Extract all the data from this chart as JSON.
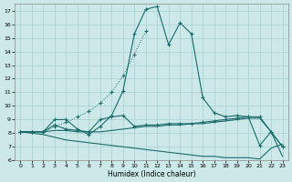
{
  "xlabel": "Humidex (Indice chaleur)",
  "xlim": [
    -0.5,
    23.5
  ],
  "ylim": [
    6,
    17.5
  ],
  "yticks": [
    6,
    7,
    8,
    9,
    10,
    11,
    12,
    13,
    14,
    15,
    16,
    17
  ],
  "xticks": [
    0,
    1,
    2,
    3,
    4,
    5,
    6,
    7,
    8,
    9,
    10,
    11,
    12,
    13,
    14,
    15,
    16,
    17,
    18,
    19,
    20,
    21,
    22,
    23
  ],
  "bg_color": "#cce8e8",
  "line_color": "#1a6b6b",
  "grid_color": "#a8d0d0",
  "curve_x": [
    0,
    1,
    2,
    3,
    4,
    5,
    6,
    7,
    8,
    9,
    10,
    11,
    12,
    13,
    14,
    15,
    16,
    17,
    18,
    19,
    20,
    21,
    22,
    23
  ],
  "curve_y": [
    8.1,
    8.1,
    8.1,
    9.0,
    9.0,
    8.3,
    7.9,
    8.5,
    9.3,
    11.1,
    15.3,
    17.1,
    17.3,
    14.5,
    16.1,
    15.3,
    10.6,
    9.5,
    9.2,
    9.3,
    9.2,
    7.1,
    8.1,
    7.0
  ],
  "dotted_x": [
    0,
    1,
    2,
    3,
    4,
    5,
    6,
    7,
    8,
    9,
    10,
    11
  ],
  "dotted_y": [
    8.1,
    8.1,
    8.1,
    8.5,
    8.8,
    9.2,
    9.6,
    10.2,
    11.0,
    12.2,
    13.8,
    15.5
  ],
  "flat_x": [
    0,
    1,
    2,
    3,
    4,
    5,
    6,
    7,
    8,
    9,
    10,
    11,
    12,
    13,
    14,
    15,
    16,
    17,
    18,
    19,
    20,
    21,
    22,
    23
  ],
  "flat_y": [
    8.1,
    8.1,
    8.1,
    8.6,
    8.3,
    8.2,
    8.1,
    9.0,
    9.2,
    9.3,
    8.5,
    8.6,
    8.6,
    8.7,
    8.7,
    8.7,
    8.8,
    8.9,
    9.0,
    9.1,
    9.2,
    9.2,
    8.1,
    7.0
  ],
  "decline_x": [
    0,
    1,
    2,
    3,
    4,
    5,
    6,
    7,
    8,
    9,
    10,
    11,
    12,
    13,
    14,
    15,
    16,
    17,
    18,
    19,
    20,
    21,
    22,
    23
  ],
  "decline_y": [
    8.1,
    8.0,
    7.9,
    7.7,
    7.5,
    7.4,
    7.3,
    7.2,
    7.1,
    7.0,
    6.9,
    6.8,
    6.7,
    6.6,
    6.5,
    6.4,
    6.3,
    6.3,
    6.2,
    6.2,
    6.2,
    6.1,
    6.9,
    7.2
  ],
  "extra_x": [
    0,
    1,
    2,
    3,
    4,
    5,
    6,
    7,
    8,
    9,
    10,
    11,
    12,
    13,
    14,
    15,
    16,
    17,
    18,
    19,
    20,
    21,
    22,
    23
  ],
  "extra_y": [
    8.1,
    8.1,
    8.1,
    8.2,
    8.2,
    8.1,
    8.1,
    8.1,
    8.2,
    8.3,
    8.4,
    8.5,
    8.5,
    8.6,
    8.6,
    8.7,
    8.7,
    8.8,
    8.9,
    9.0,
    9.1,
    9.1,
    8.1,
    6.3
  ]
}
